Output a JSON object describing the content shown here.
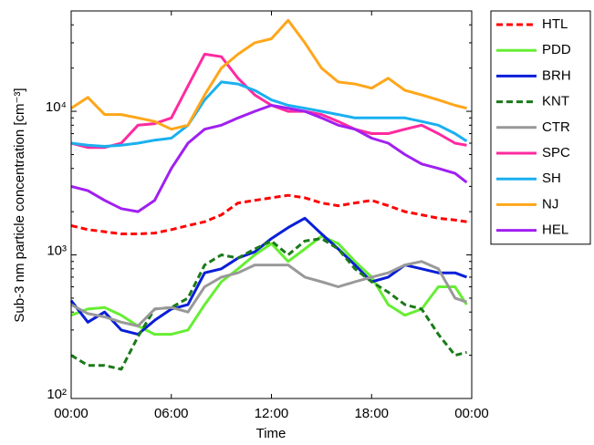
{
  "chart_data": {
    "type": "line",
    "xlabel": "Time",
    "ylabel": "Sub-3 nm particle concentration [cm⁻³]",
    "log_y": true,
    "legend": "right",
    "xlim": [
      0,
      24
    ],
    "xticks": [
      {
        "value": 0,
        "label": "00:00"
      },
      {
        "value": 6,
        "label": "06:00"
      },
      {
        "value": 12,
        "label": "12:00"
      },
      {
        "value": 18,
        "label": "18:00"
      },
      {
        "value": 24,
        "label": "00:00"
      }
    ],
    "ylim": [
      100,
      50000
    ],
    "yticks": [
      {
        "value": 100,
        "label": "10²"
      },
      {
        "value": 1000,
        "label": "10³"
      },
      {
        "value": 10000,
        "label": "10⁴"
      }
    ],
    "x": [
      0,
      1,
      2,
      3,
      4,
      5,
      6,
      7,
      8,
      9,
      10,
      11,
      12,
      13,
      14,
      15,
      16,
      17,
      18,
      19,
      20,
      21,
      22,
      23,
      23.7
    ],
    "series": [
      {
        "name": "HTL",
        "color": "#ff0000",
        "style": "dashed",
        "values": [
          1600,
          1500,
          1450,
          1400,
          1400,
          1420,
          1500,
          1600,
          1700,
          1900,
          2300,
          2400,
          2500,
          2600,
          2500,
          2300,
          2200,
          2300,
          2400,
          2200,
          2000,
          1900,
          1800,
          1750,
          1700
        ]
      },
      {
        "name": "PDD",
        "color": "#66ee33",
        "style": "solid",
        "values": [
          380,
          420,
          430,
          380,
          320,
          280,
          280,
          300,
          450,
          650,
          800,
          1000,
          1200,
          900,
          1100,
          1350,
          1200,
          900,
          700,
          450,
          380,
          420,
          600,
          600,
          450
        ]
      },
      {
        "name": "BRH",
        "color": "#0a1ed8",
        "style": "solid",
        "values": [
          480,
          340,
          400,
          300,
          280,
          350,
          420,
          450,
          750,
          800,
          950,
          1050,
          1300,
          1550,
          1800,
          1400,
          1100,
          850,
          650,
          700,
          850,
          800,
          750,
          750,
          700
        ]
      },
      {
        "name": "KNT",
        "color": "#1a7a1a",
        "style": "dashed",
        "values": [
          200,
          170,
          170,
          160,
          270,
          420,
          430,
          500,
          850,
          1000,
          950,
          1100,
          1250,
          1000,
          1250,
          1300,
          1100,
          800,
          650,
          550,
          450,
          420,
          280,
          200,
          210
        ]
      },
      {
        "name": "CTR",
        "color": "#999999",
        "style": "solid",
        "values": [
          450,
          390,
          370,
          340,
          320,
          420,
          430,
          400,
          600,
          700,
          750,
          850,
          850,
          850,
          700,
          650,
          600,
          650,
          700,
          750,
          850,
          900,
          800,
          500,
          470
        ]
      },
      {
        "name": "SPC",
        "color": "#ff2aa0",
        "style": "solid",
        "values": [
          6000,
          5600,
          5600,
          6000,
          8000,
          8200,
          9000,
          15000,
          25000,
          24000,
          17000,
          13000,
          11000,
          10000,
          10000,
          9500,
          8500,
          7500,
          7000,
          7000,
          7500,
          8000,
          7000,
          6000,
          5800
        ]
      },
      {
        "name": "SH",
        "color": "#1ab0f0",
        "style": "solid",
        "values": [
          6000,
          5800,
          5700,
          5800,
          6000,
          6300,
          6500,
          8000,
          12000,
          16000,
          15500,
          14000,
          12000,
          11000,
          10500,
          10000,
          9500,
          9000,
          9000,
          9000,
          9000,
          8500,
          8000,
          7000,
          6200
        ]
      },
      {
        "name": "NJ",
        "color": "#ffa61a",
        "style": "solid",
        "values": [
          10500,
          12500,
          9500,
          9500,
          9000,
          8500,
          7500,
          8000,
          13000,
          20000,
          25000,
          30000,
          32000,
          43000,
          30000,
          20000,
          16000,
          15500,
          14500,
          17000,
          14000,
          13000,
          12000,
          11000,
          10500
        ]
      },
      {
        "name": "HEL",
        "color": "#a020f0",
        "style": "solid",
        "values": [
          3000,
          2800,
          2400,
          2100,
          2000,
          2400,
          4000,
          6000,
          7500,
          8000,
          9000,
          10000,
          11000,
          10500,
          10000,
          9000,
          8000,
          7500,
          6500,
          6000,
          5000,
          4300,
          4000,
          3700,
          3200
        ]
      }
    ]
  }
}
